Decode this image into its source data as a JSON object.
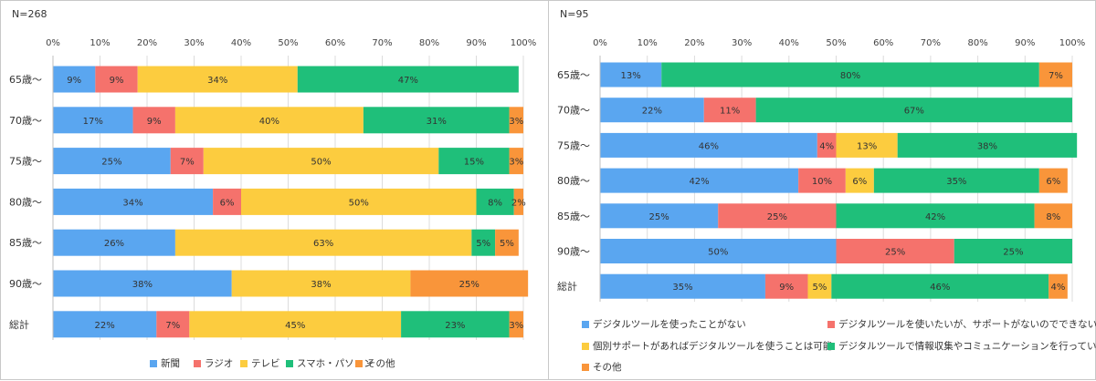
{
  "chart_data": [
    {
      "type": "bar",
      "orientation": "horizontal",
      "stacked": "percent",
      "n_label": "N=268",
      "categories": [
        "65歳～",
        "70歳～",
        "75歳～",
        "80歳～",
        "85歳～",
        "90歳～",
        "総計"
      ],
      "xlim": [
        0,
        100
      ],
      "ticks": [
        "0%",
        "10%",
        "20%",
        "30%",
        "40%",
        "50%",
        "60%",
        "70%",
        "80%",
        "90%",
        "100%"
      ],
      "grid": true,
      "legend_position": "bottom",
      "series": [
        {
          "name": "新聞",
          "color": "#5aa6f0",
          "values": [
            9,
            17,
            25,
            34,
            26,
            38,
            22
          ]
        },
        {
          "name": "ラジオ",
          "color": "#f5726c",
          "values": [
            9,
            9,
            7,
            6,
            0,
            0,
            7
          ]
        },
        {
          "name": "テレビ",
          "color": "#fccc3f",
          "values": [
            34,
            40,
            50,
            50,
            63,
            38,
            45
          ]
        },
        {
          "name": "スマホ・パソコン",
          "color": "#1fbf7a",
          "values": [
            47,
            31,
            15,
            8,
            5,
            0,
            23
          ]
        },
        {
          "name": "その他",
          "color": "#f9953a",
          "values": [
            0,
            3,
            3,
            2,
            5,
            25,
            3
          ]
        }
      ]
    },
    {
      "type": "bar",
      "orientation": "horizontal",
      "stacked": "percent",
      "n_label": "N=95",
      "categories": [
        "65歳～",
        "70歳～",
        "75歳～",
        "80歳～",
        "85歳～",
        "90歳～",
        "総計"
      ],
      "xlim": [
        0,
        100
      ],
      "ticks": [
        "0%",
        "10%",
        "20%",
        "30%",
        "40%",
        "50%",
        "60%",
        "70%",
        "80%",
        "90%",
        "100%"
      ],
      "grid": true,
      "legend_position": "bottom",
      "series": [
        {
          "name": "デジタルツールを使ったことがない",
          "color": "#5aa6f0",
          "values": [
            13,
            22,
            46,
            42,
            25,
            50,
            35
          ]
        },
        {
          "name": "デジタルツールを使いたいが、サポートがないのでできない",
          "color": "#f5726c",
          "values": [
            0,
            11,
            4,
            10,
            25,
            25,
            9
          ]
        },
        {
          "name": "個別サポートがあればデジタルツールを使うことは可能",
          "color": "#fccc3f",
          "values": [
            0,
            0,
            13,
            6,
            0,
            0,
            5
          ]
        },
        {
          "name": "デジタルツールで情報収集やコミュニケーションを行っている",
          "color": "#1fbf7a",
          "values": [
            80,
            67,
            38,
            35,
            42,
            25,
            46
          ]
        },
        {
          "name": "その他",
          "color": "#f9953a",
          "values": [
            7,
            0,
            0,
            6,
            8,
            0,
            4
          ]
        }
      ]
    }
  ]
}
